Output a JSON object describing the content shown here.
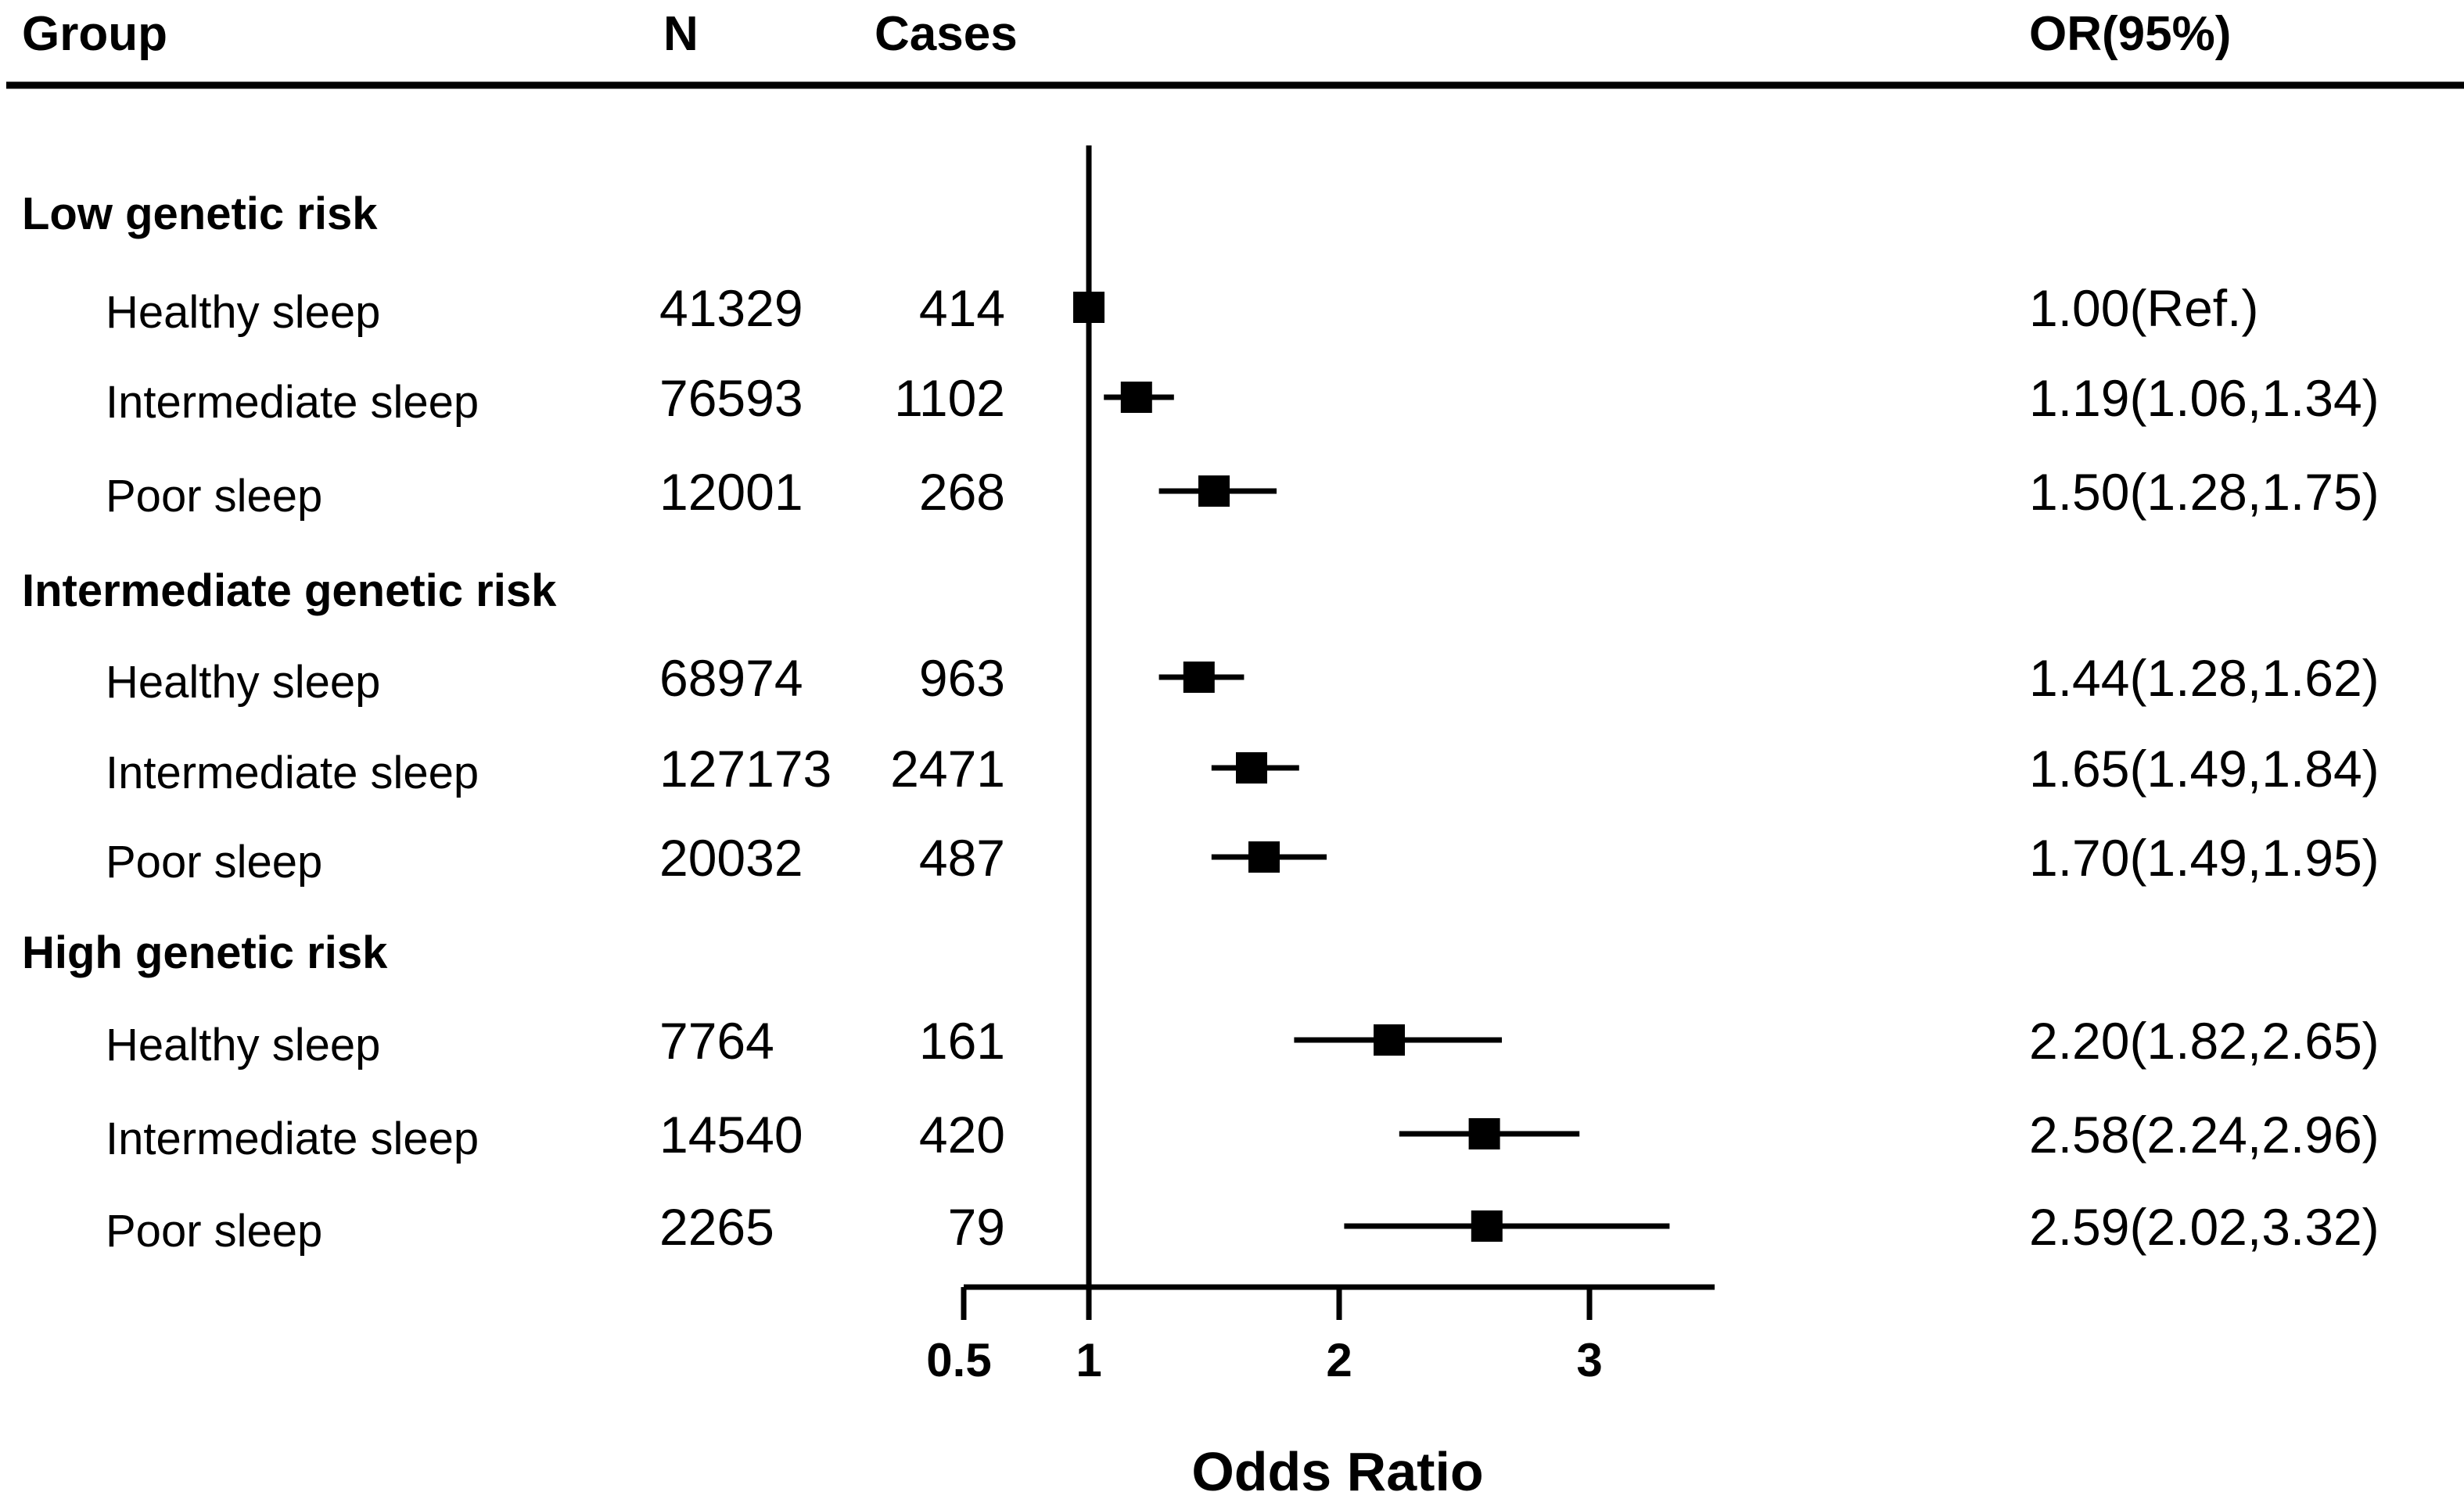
{
  "header": {
    "group": "Group",
    "n": "N",
    "cases": "Cases",
    "or": "OR(95%)"
  },
  "chart_data": {
    "type": "forest",
    "xlabel": "Odds Ratio",
    "xlim": [
      0.5,
      3.5
    ],
    "reference_line": 1,
    "ticks": [
      {
        "value": 0.5,
        "label": "0.5"
      },
      {
        "value": 1,
        "label": "1"
      },
      {
        "value": 2,
        "label": "2"
      },
      {
        "value": 3,
        "label": "3"
      }
    ],
    "groups": [
      {
        "name": "Low genetic risk",
        "rows": [
          {
            "label": "Healthy sleep",
            "n": "41329",
            "cases": "414",
            "or": 1.0,
            "lo": 1.0,
            "hi": 1.0,
            "or_text": "1.00(Ref.)"
          },
          {
            "label": "Intermediate sleep",
            "n": "76593",
            "cases": "1102",
            "or": 1.19,
            "lo": 1.06,
            "hi": 1.34,
            "or_text": "1.19(1.06,1.34)"
          },
          {
            "label": "Poor sleep",
            "n": "12001",
            "cases": "268",
            "or": 1.5,
            "lo": 1.28,
            "hi": 1.75,
            "or_text": "1.50(1.28,1.75)"
          }
        ]
      },
      {
        "name": "Intermediate genetic risk",
        "rows": [
          {
            "label": "Healthy sleep",
            "n": "68974",
            "cases": "963",
            "or": 1.44,
            "lo": 1.28,
            "hi": 1.62,
            "or_text": "1.44(1.28,1.62)"
          },
          {
            "label": "Intermediate sleep",
            "n": "127173",
            "cases": "2471",
            "or": 1.65,
            "lo": 1.49,
            "hi": 1.84,
            "or_text": "1.65(1.49,1.84)"
          },
          {
            "label": "Poor sleep",
            "n": "20032",
            "cases": "487",
            "or": 1.7,
            "lo": 1.49,
            "hi": 1.95,
            "or_text": "1.70(1.49,1.95)"
          }
        ]
      },
      {
        "name": "High genetic risk",
        "rows": [
          {
            "label": "Healthy sleep",
            "n": "7764",
            "cases": "161",
            "or": 2.2,
            "lo": 1.82,
            "hi": 2.65,
            "or_text": "2.20(1.82,2.65)"
          },
          {
            "label": "Intermediate sleep",
            "n": "14540",
            "cases": "420",
            "or": 2.58,
            "lo": 2.24,
            "hi": 2.96,
            "or_text": "2.58(2.24,2.96)"
          },
          {
            "label": "Poor sleep",
            "n": "2265",
            "cases": "79",
            "or": 2.59,
            "lo": 2.02,
            "hi": 3.32,
            "or_text": "2.59(2.02,3.32)"
          }
        ]
      }
    ]
  }
}
